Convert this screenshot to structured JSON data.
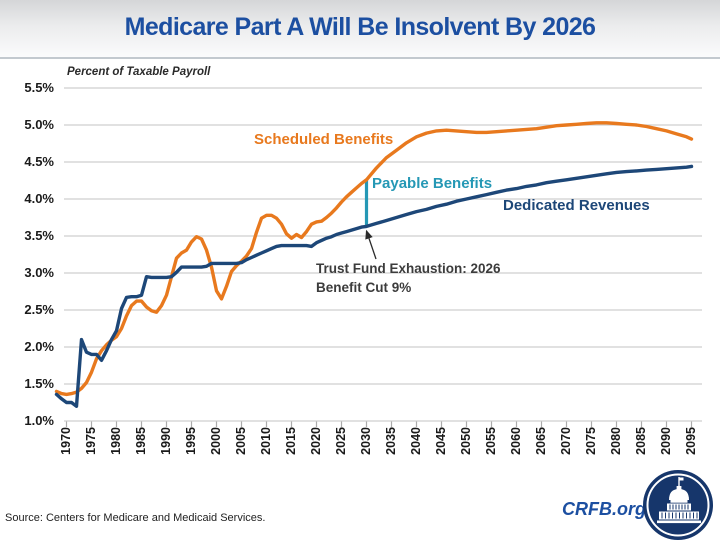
{
  "header": {
    "title": "Medicare Part A Will Be Insolvent By 2026"
  },
  "chart_data": {
    "type": "line",
    "title": "Medicare Part A Will Be Insolvent By 2026",
    "ylabel": "Percent of Taxable Payroll",
    "xlabel": "",
    "xlim": [
      1968,
      2096
    ],
    "ylim": [
      1.0,
      5.5
    ],
    "grid": "horizontal",
    "legend_position": "inline-labels",
    "y_ticks": [
      {
        "label": "5.5%",
        "value": 5.5
      },
      {
        "label": "5.0%",
        "value": 5.0
      },
      {
        "label": "4.5%",
        "value": 4.5
      },
      {
        "label": "4.0%",
        "value": 4.0
      },
      {
        "label": "3.5%",
        "value": 3.5
      },
      {
        "label": "3.0%",
        "value": 3.0
      },
      {
        "label": "2.5%",
        "value": 2.5
      },
      {
        "label": "2.0%",
        "value": 2.0
      },
      {
        "label": "1.5%",
        "value": 1.5
      },
      {
        "label": "1.0%",
        "value": 1.0
      }
    ],
    "x_ticks": [
      {
        "label": "1970",
        "value": 1970
      },
      {
        "label": "1975",
        "value": 1975
      },
      {
        "label": "1980",
        "value": 1980
      },
      {
        "label": "1985",
        "value": 1985
      },
      {
        "label": "1990",
        "value": 1990
      },
      {
        "label": "1995",
        "value": 1995
      },
      {
        "label": "2000",
        "value": 2000
      },
      {
        "label": "2005",
        "value": 2005
      },
      {
        "label": "2010",
        "value": 2010
      },
      {
        "label": "2015",
        "value": 2015
      },
      {
        "label": "2020",
        "value": 2020
      },
      {
        "label": "2025",
        "value": 2025
      },
      {
        "label": "2030",
        "value": 2030
      },
      {
        "label": "2035",
        "value": 2035
      },
      {
        "label": "2040",
        "value": 2040
      },
      {
        "label": "2045",
        "value": 2045
      },
      {
        "label": "2050",
        "value": 2050
      },
      {
        "label": "2055",
        "value": 2055
      },
      {
        "label": "2060",
        "value": 2060
      },
      {
        "label": "2065",
        "value": 2065
      },
      {
        "label": "2070",
        "value": 2070
      },
      {
        "label": "2075",
        "value": 2075
      },
      {
        "label": "2080",
        "value": 2080
      },
      {
        "label": "2085",
        "value": 2085
      },
      {
        "label": "2090",
        "value": 2090
      },
      {
        "label": "2095",
        "value": 2095
      }
    ],
    "series": [
      {
        "name": "Scheduled Benefits",
        "color": "#e8791e",
        "points": [
          [
            1968,
            1.4
          ],
          [
            1969,
            1.37
          ],
          [
            1970,
            1.36
          ],
          [
            1971,
            1.37
          ],
          [
            1972,
            1.39
          ],
          [
            1973,
            1.44
          ],
          [
            1974,
            1.52
          ],
          [
            1975,
            1.66
          ],
          [
            1976,
            1.84
          ],
          [
            1977,
            1.95
          ],
          [
            1978,
            2.03
          ],
          [
            1979,
            2.09
          ],
          [
            1980,
            2.14
          ],
          [
            1981,
            2.25
          ],
          [
            1982,
            2.42
          ],
          [
            1983,
            2.56
          ],
          [
            1984,
            2.62
          ],
          [
            1985,
            2.62
          ],
          [
            1986,
            2.54
          ],
          [
            1987,
            2.49
          ],
          [
            1988,
            2.47
          ],
          [
            1989,
            2.56
          ],
          [
            1990,
            2.7
          ],
          [
            1991,
            2.95
          ],
          [
            1992,
            3.2
          ],
          [
            1993,
            3.27
          ],
          [
            1994,
            3.31
          ],
          [
            1995,
            3.42
          ],
          [
            1996,
            3.49
          ],
          [
            1997,
            3.46
          ],
          [
            1998,
            3.31
          ],
          [
            1999,
            3.08
          ],
          [
            2000,
            2.76
          ],
          [
            2001,
            2.65
          ],
          [
            2002,
            2.82
          ],
          [
            2003,
            3.02
          ],
          [
            2004,
            3.1
          ],
          [
            2005,
            3.16
          ],
          [
            2006,
            3.23
          ],
          [
            2007,
            3.33
          ],
          [
            2008,
            3.55
          ],
          [
            2009,
            3.74
          ],
          [
            2010,
            3.78
          ],
          [
            2011,
            3.78
          ],
          [
            2012,
            3.74
          ],
          [
            2013,
            3.66
          ],
          [
            2014,
            3.53
          ],
          [
            2015,
            3.47
          ],
          [
            2016,
            3.52
          ],
          [
            2017,
            3.48
          ],
          [
            2018,
            3.56
          ],
          [
            2019,
            3.66
          ],
          [
            2020,
            3.69
          ],
          [
            2021,
            3.7
          ],
          [
            2022,
            3.75
          ],
          [
            2023,
            3.81
          ],
          [
            2024,
            3.88
          ],
          [
            2025,
            3.96
          ],
          [
            2026,
            4.03
          ],
          [
            2027,
            4.09
          ],
          [
            2028,
            4.15
          ],
          [
            2029,
            4.21
          ],
          [
            2030,
            4.26
          ],
          [
            2032,
            4.42
          ],
          [
            2034,
            4.56
          ],
          [
            2036,
            4.66
          ],
          [
            2038,
            4.76
          ],
          [
            2040,
            4.84
          ],
          [
            2042,
            4.89
          ],
          [
            2044,
            4.92
          ],
          [
            2046,
            4.93
          ],
          [
            2048,
            4.92
          ],
          [
            2050,
            4.91
          ],
          [
            2052,
            4.9
          ],
          [
            2054,
            4.9
          ],
          [
            2056,
            4.91
          ],
          [
            2058,
            4.92
          ],
          [
            2060,
            4.93
          ],
          [
            2062,
            4.94
          ],
          [
            2064,
            4.95
          ],
          [
            2066,
            4.97
          ],
          [
            2068,
            4.99
          ],
          [
            2070,
            5.0
          ],
          [
            2072,
            5.01
          ],
          [
            2074,
            5.02
          ],
          [
            2076,
            5.03
          ],
          [
            2078,
            5.03
          ],
          [
            2080,
            5.02
          ],
          [
            2082,
            5.01
          ],
          [
            2084,
            5.0
          ],
          [
            2086,
            4.98
          ],
          [
            2088,
            4.95
          ],
          [
            2090,
            4.92
          ],
          [
            2092,
            4.88
          ],
          [
            2094,
            4.84
          ],
          [
            2095,
            4.81
          ]
        ]
      },
      {
        "name": "Dedicated Revenues",
        "color": "#1d4778",
        "points": [
          [
            1968,
            1.36
          ],
          [
            1969,
            1.3
          ],
          [
            1970,
            1.25
          ],
          [
            1971,
            1.25
          ],
          [
            1972,
            1.2
          ],
          [
            1973,
            2.1
          ],
          [
            1974,
            1.93
          ],
          [
            1975,
            1.9
          ],
          [
            1976,
            1.9
          ],
          [
            1977,
            1.82
          ],
          [
            1978,
            1.95
          ],
          [
            1979,
            2.1
          ],
          [
            1980,
            2.22
          ],
          [
            1981,
            2.52
          ],
          [
            1982,
            2.67
          ],
          [
            1983,
            2.68
          ],
          [
            1984,
            2.68
          ],
          [
            1985,
            2.7
          ],
          [
            1986,
            2.95
          ],
          [
            1987,
            2.94
          ],
          [
            1988,
            2.94
          ],
          [
            1989,
            2.94
          ],
          [
            1990,
            2.94
          ],
          [
            1991,
            2.95
          ],
          [
            1992,
            3.01
          ],
          [
            1993,
            3.08
          ],
          [
            1994,
            3.08
          ],
          [
            1995,
            3.08
          ],
          [
            1996,
            3.08
          ],
          [
            1997,
            3.08
          ],
          [
            1998,
            3.09
          ],
          [
            1999,
            3.13
          ],
          [
            2000,
            3.13
          ],
          [
            2001,
            3.13
          ],
          [
            2002,
            3.13
          ],
          [
            2003,
            3.13
          ],
          [
            2004,
            3.13
          ],
          [
            2005,
            3.14
          ],
          [
            2006,
            3.18
          ],
          [
            2007,
            3.21
          ],
          [
            2008,
            3.24
          ],
          [
            2009,
            3.27
          ],
          [
            2010,
            3.3
          ],
          [
            2011,
            3.33
          ],
          [
            2012,
            3.36
          ],
          [
            2013,
            3.37
          ],
          [
            2014,
            3.37
          ],
          [
            2015,
            3.37
          ],
          [
            2016,
            3.37
          ],
          [
            2017,
            3.37
          ],
          [
            2018,
            3.37
          ],
          [
            2019,
            3.36
          ],
          [
            2020,
            3.41
          ],
          [
            2021,
            3.44
          ],
          [
            2022,
            3.47
          ],
          [
            2023,
            3.49
          ],
          [
            2024,
            3.52
          ],
          [
            2025,
            3.54
          ],
          [
            2026,
            3.56
          ],
          [
            2027,
            3.58
          ],
          [
            2028,
            3.6
          ],
          [
            2029,
            3.62
          ],
          [
            2030,
            3.63
          ],
          [
            2032,
            3.67
          ],
          [
            2034,
            3.71
          ],
          [
            2036,
            3.75
          ],
          [
            2038,
            3.79
          ],
          [
            2040,
            3.83
          ],
          [
            2042,
            3.86
          ],
          [
            2044,
            3.9
          ],
          [
            2046,
            3.93
          ],
          [
            2048,
            3.97
          ],
          [
            2050,
            4.0
          ],
          [
            2052,
            4.03
          ],
          [
            2054,
            4.06
          ],
          [
            2056,
            4.09
          ],
          [
            2058,
            4.12
          ],
          [
            2060,
            4.14
          ],
          [
            2062,
            4.17
          ],
          [
            2064,
            4.19
          ],
          [
            2066,
            4.22
          ],
          [
            2068,
            4.24
          ],
          [
            2070,
            4.26
          ],
          [
            2072,
            4.28
          ],
          [
            2074,
            4.3
          ],
          [
            2076,
            4.32
          ],
          [
            2078,
            4.34
          ],
          [
            2080,
            4.36
          ],
          [
            2082,
            4.37
          ],
          [
            2084,
            4.38
          ],
          [
            2086,
            4.39
          ],
          [
            2088,
            4.4
          ],
          [
            2090,
            4.41
          ],
          [
            2092,
            4.42
          ],
          [
            2094,
            4.43
          ],
          [
            2095,
            4.44
          ]
        ]
      }
    ],
    "payable_marker": {
      "label": "Payable Benefits",
      "color": "#2598b5",
      "year": 2030,
      "from_value": 3.63,
      "to_value": 4.26
    },
    "annotation": {
      "line1": "Trust Fund Exhaustion: 2026",
      "line2": "Benefit Cut 9%",
      "arrow_from_xy": [
        376,
        259
      ],
      "arrow_to_xy": [
        366.5,
        231
      ]
    },
    "grid_color": "#cfcfcf",
    "tick_color": "#ababab"
  },
  "footer": {
    "source": "Source: Centers for Medicare and Medicaid Services.",
    "brand": "CRFB.org"
  },
  "colors": {
    "title_blue": "#1c4fa1",
    "scheduled_orange": "#e8791e",
    "revenues_navy": "#1d4778",
    "payable_teal": "#2598b5",
    "logo_navy": "#16366b"
  }
}
